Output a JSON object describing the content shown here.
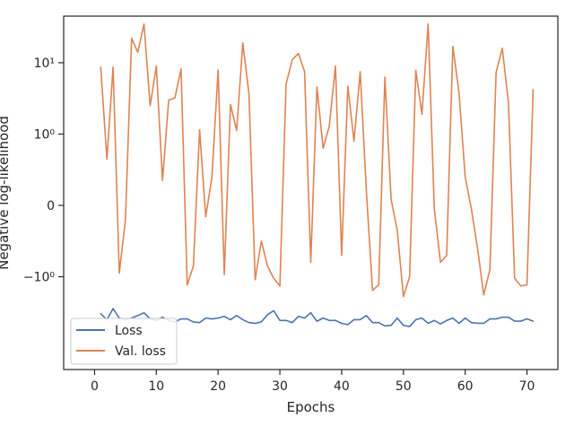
{
  "chart_data": {
    "type": "line",
    "title": "",
    "xlabel": "Epochs",
    "ylabel": "Negative log-likelihood",
    "yscale": "symlog",
    "xlim": [
      -5,
      75
    ],
    "ylim": [
      -20,
      45
    ],
    "grid": false,
    "legend_position": "lower-left",
    "x_ticks": [
      0,
      10,
      20,
      30,
      40,
      50,
      60,
      70
    ],
    "x_tick_labels": [
      "0",
      "10",
      "20",
      "30",
      "40",
      "50",
      "60",
      "70"
    ],
    "y_ticks": [
      -1,
      0,
      1,
      10
    ],
    "y_tick_labels": [
      "−10⁰",
      "0",
      "10⁰",
      "10¹"
    ],
    "x": [
      1,
      2,
      3,
      4,
      5,
      6,
      7,
      8,
      9,
      10,
      11,
      12,
      13,
      14,
      15,
      16,
      17,
      18,
      19,
      20,
      21,
      22,
      23,
      24,
      25,
      26,
      27,
      28,
      29,
      30,
      31,
      32,
      33,
      34,
      35,
      36,
      37,
      38,
      39,
      40,
      41,
      42,
      43,
      44,
      45,
      46,
      47,
      48,
      49,
      50,
      51,
      52,
      53,
      54,
      55,
      56,
      57,
      58,
      59,
      60,
      61,
      62,
      63,
      64,
      65,
      66,
      67,
      68,
      69,
      70,
      71
    ],
    "series": [
      {
        "name": "Loss",
        "color": "#4c72b0",
        "values": [
          -3.3,
          -4.0,
          -2.8,
          -3.8,
          -4.0,
          -3.8,
          -3.5,
          -3.2,
          -3.9,
          -4.1,
          -3.7,
          -4.1,
          -4.3,
          -3.9,
          -3.9,
          -4.3,
          -4.4,
          -3.8,
          -3.9,
          -3.8,
          -3.6,
          -4.0,
          -3.5,
          -4.0,
          -4.4,
          -4.5,
          -4.3,
          -3.4,
          -3.0,
          -4.1,
          -4.1,
          -4.4,
          -3.6,
          -3.8,
          -3.2,
          -4.2,
          -3.8,
          -4.1,
          -4.1,
          -4.5,
          -4.7,
          -4.0,
          -4.0,
          -3.5,
          -4.4,
          -4.4,
          -4.9,
          -4.8,
          -3.8,
          -4.8,
          -5.0,
          -4.0,
          -3.8,
          -4.5,
          -4.1,
          -4.6,
          -4.1,
          -3.8,
          -4.5,
          -3.8,
          -4.4,
          -4.5,
          -4.5,
          -3.9,
          -3.9,
          -3.7,
          -3.7,
          -4.2,
          -4.2,
          -3.9,
          -4.2
        ]
      },
      {
        "name": "Val. loss",
        "color": "#dd8452",
        "values": [
          8.7,
          0.65,
          8.7,
          -0.95,
          -0.2,
          22,
          14,
          35,
          2.5,
          9,
          0.35,
          3,
          3.2,
          8.2,
          -1.3,
          -0.85,
          1.15,
          -0.16,
          0.4,
          7.9,
          -0.97,
          2.6,
          1.12,
          19,
          3.6,
          -1.1,
          -0.5,
          -0.85,
          -1.05,
          -1.35,
          5,
          11,
          13.5,
          7.5,
          -0.8,
          4.6,
          0.8,
          1.3,
          9,
          -0.7,
          4.7,
          0.9,
          7.5,
          0.2,
          -1.55,
          -1.3,
          6.3,
          0.09,
          -0.35,
          -1.9,
          -1.0,
          7.8,
          1.9,
          35,
          -0.05,
          -0.8,
          -0.7,
          17,
          3.8,
          0.4,
          -0.05,
          -0.6,
          -1.8,
          -0.9,
          7.3,
          16,
          2.8,
          -1.05,
          -1.35,
          -1.3,
          4.2
        ]
      }
    ]
  }
}
